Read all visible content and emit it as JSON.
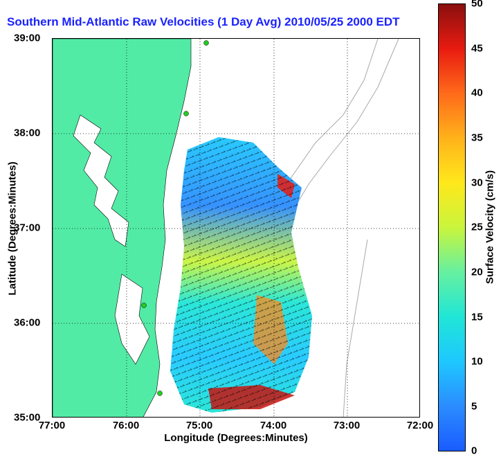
{
  "title": "Southern Mid-Atlantic Raw Velocities (1 Day Avg) 2010/05/25 2000 EDT",
  "x_axis": {
    "label": "Longitude (Degrees:Minutes)",
    "ticks": [
      "77:00",
      "76:00",
      "75:00",
      "74:00",
      "73:00",
      "72:00"
    ]
  },
  "y_axis": {
    "label": "Latitude (Degrees:Minutes)",
    "ticks": [
      "39:00",
      "38:00",
      "37:00",
      "36:00",
      "35:00"
    ]
  },
  "colorbar": {
    "label": "Surface Velocity (cm/s)",
    "ticks": [
      "50",
      "45",
      "40",
      "35",
      "30",
      "25",
      "20",
      "15",
      "10",
      "5",
      "0"
    ],
    "range": [
      0,
      50
    ],
    "colors": [
      "#1a5cff",
      "#2b8cff",
      "#1ec8ff",
      "#20e6d6",
      "#66f0a0",
      "#c9f53c",
      "#ffe81c",
      "#ffb21a",
      "#ff6a1a",
      "#e81b10",
      "#8a0f0f"
    ]
  },
  "colors": {
    "land": "#52eba6",
    "title": "#1a22ff",
    "station": "#22cc22",
    "isobath": "#a8a8a8"
  }
}
